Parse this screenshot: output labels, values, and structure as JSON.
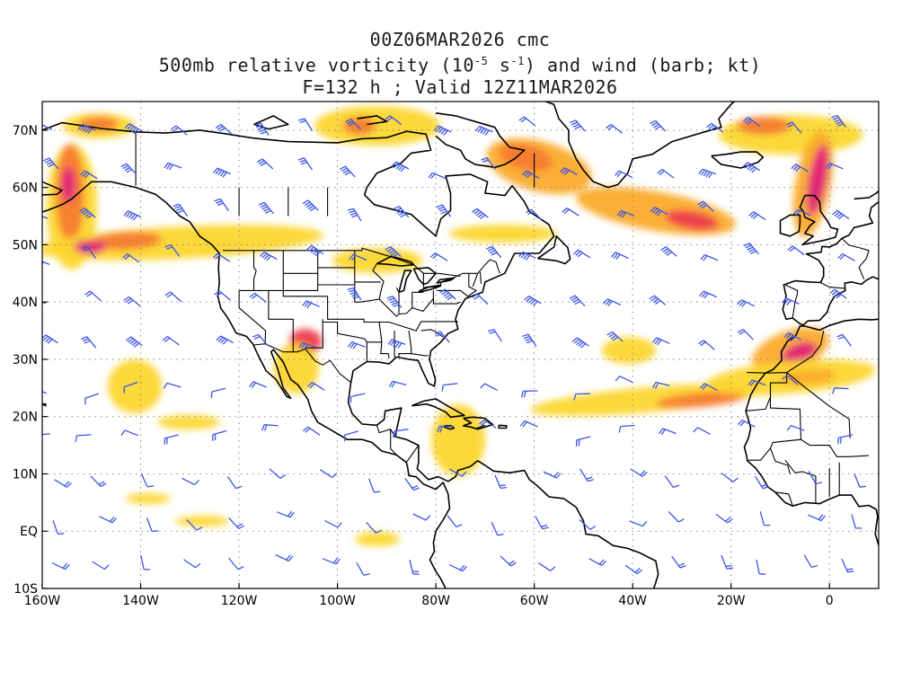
{
  "title": {
    "line1": "00Z06MAR2026 cmc",
    "line2_pre": "500mb relative vorticity (10",
    "line2_exp1": "-5",
    "line2_mid": " s",
    "line2_exp2": "-1",
    "line2_post": ") and wind (barb; kt)",
    "line3": "F=132 h ; Valid 12Z11MAR2026"
  },
  "map": {
    "lon_range": [
      -160,
      10
    ],
    "lat_range": [
      -10,
      75
    ],
    "lon_ticks": [
      {
        "value": -160,
        "label": "160W"
      },
      {
        "value": -140,
        "label": "140W"
      },
      {
        "value": -120,
        "label": "120W"
      },
      {
        "value": -100,
        "label": "100W"
      },
      {
        "value": -80,
        "label": "80W"
      },
      {
        "value": -60,
        "label": "60W"
      },
      {
        "value": -40,
        "label": "40W"
      },
      {
        "value": -20,
        "label": "20W"
      },
      {
        "value": 0,
        "label": "0"
      }
    ],
    "lat_ticks": [
      {
        "value": 70,
        "label": "70N"
      },
      {
        "value": 60,
        "label": "60N"
      },
      {
        "value": 50,
        "label": "50N"
      },
      {
        "value": 40,
        "label": "40N"
      },
      {
        "value": 30,
        "label": "30N"
      },
      {
        "value": 20,
        "label": "20N"
      },
      {
        "value": 10,
        "label": "10N"
      },
      {
        "value": 0,
        "label": "EQ"
      },
      {
        "value": -10,
        "label": "10S"
      }
    ],
    "grid": "dotted",
    "colors": {
      "vort_low": "#f2f200",
      "vort_mid1": "#fcd62e",
      "vort_mid2": "#fbab2c",
      "vort_mid3": "#f77b30",
      "vort_high": "#ee3a4c",
      "vort_max": "#e0217a",
      "barb": "#3b55e6",
      "coast": "#000000"
    }
  }
}
